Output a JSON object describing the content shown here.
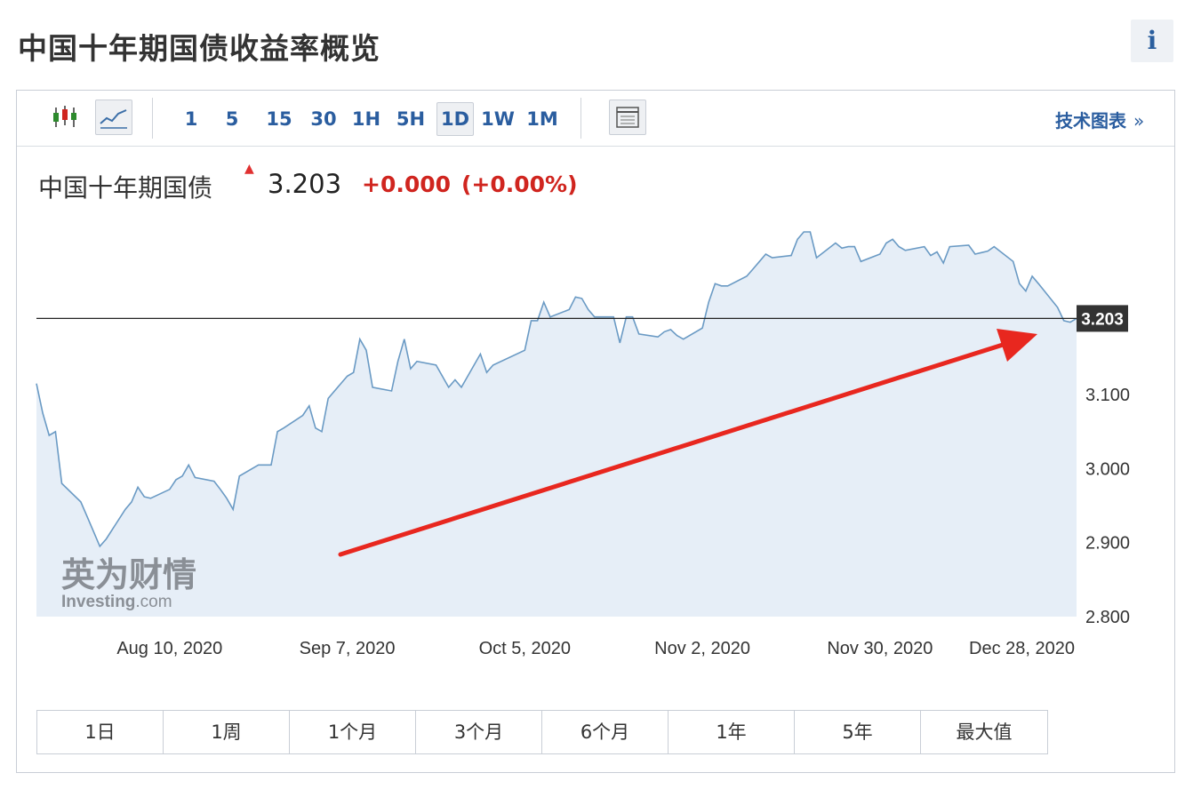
{
  "page": {
    "title": "中国十年期国债收益率概览",
    "info_label": "i"
  },
  "toolbar": {
    "ranges": [
      "1",
      "5",
      "15",
      "30",
      "1H",
      "5H",
      "1D",
      "1W",
      "1M"
    ],
    "active_range": "1D",
    "tech_link": "技术图表",
    "tech_chevron": "»"
  },
  "quote": {
    "name": "中国十年期国债",
    "price": "3.203",
    "change": "+0.000",
    "change_pct": "(+0.00%)"
  },
  "watermark": {
    "brand": "英为财情",
    "site": "Investing",
    "domain": ".com"
  },
  "periods": [
    "1日",
    "1周",
    "1个月",
    "3个月",
    "6个月",
    "1年",
    "5年",
    "最大值"
  ],
  "colors": {
    "line": "#6a9ac4",
    "area": "#e6eef7",
    "accent_red": "#d0251f",
    "link_blue": "#2a5d9f"
  },
  "chart_data": {
    "type": "area",
    "x": [
      "2020-07-20",
      "2020-07-21",
      "2020-07-22",
      "2020-07-23",
      "2020-07-24",
      "2020-07-27",
      "2020-07-28",
      "2020-07-29",
      "2020-07-30",
      "2020-07-31",
      "2020-08-03",
      "2020-08-04",
      "2020-08-05",
      "2020-08-06",
      "2020-08-07",
      "2020-08-10",
      "2020-08-11",
      "2020-08-12",
      "2020-08-13",
      "2020-08-14",
      "2020-08-17",
      "2020-08-18",
      "2020-08-19",
      "2020-08-20",
      "2020-08-21",
      "2020-08-24",
      "2020-08-25",
      "2020-08-26",
      "2020-08-27",
      "2020-08-28",
      "2020-08-31",
      "2020-09-01",
      "2020-09-02",
      "2020-09-03",
      "2020-09-04",
      "2020-09-07",
      "2020-09-08",
      "2020-09-09",
      "2020-09-10",
      "2020-09-11",
      "2020-09-14",
      "2020-09-15",
      "2020-09-16",
      "2020-09-17",
      "2020-09-18",
      "2020-09-21",
      "2020-09-22",
      "2020-09-23",
      "2020-09-24",
      "2020-09-25",
      "2020-09-28",
      "2020-09-29",
      "2020-09-30",
      "2020-10-05",
      "2020-10-06",
      "2020-10-07",
      "2020-10-08",
      "2020-10-09",
      "2020-10-12",
      "2020-10-13",
      "2020-10-14",
      "2020-10-15",
      "2020-10-16",
      "2020-10-19",
      "2020-10-20",
      "2020-10-21",
      "2020-10-22",
      "2020-10-23",
      "2020-10-26",
      "2020-10-27",
      "2020-10-28",
      "2020-10-29",
      "2020-10-30",
      "2020-11-02",
      "2020-11-03",
      "2020-11-04",
      "2020-11-05",
      "2020-11-06",
      "2020-11-09",
      "2020-11-10",
      "2020-11-11",
      "2020-11-12",
      "2020-11-13",
      "2020-11-16",
      "2020-11-17",
      "2020-11-18",
      "2020-11-19",
      "2020-11-20",
      "2020-11-23",
      "2020-11-24",
      "2020-11-25",
      "2020-11-26",
      "2020-11-27",
      "2020-11-30",
      "2020-12-01",
      "2020-12-02",
      "2020-12-03",
      "2020-12-04",
      "2020-12-07",
      "2020-12-08",
      "2020-12-09",
      "2020-12-10",
      "2020-12-11",
      "2020-12-14",
      "2020-12-15",
      "2020-12-16",
      "2020-12-17",
      "2020-12-18",
      "2020-12-21",
      "2020-12-22",
      "2020-12-23",
      "2020-12-24",
      "2020-12-25",
      "2020-12-28",
      "2020-12-29",
      "2020-12-30",
      "2020-12-31"
    ],
    "series": [
      {
        "values": [
          3.115,
          3.075,
          3.045,
          3.05,
          2.98,
          2.955,
          2.935,
          2.915,
          2.895,
          2.905,
          2.945,
          2.955,
          2.975,
          2.962,
          2.96,
          2.972,
          2.985,
          2.99,
          3.005,
          2.988,
          2.983,
          2.972,
          2.96,
          2.945,
          2.99,
          3.005,
          3.005,
          3.005,
          3.05,
          3.055,
          3.072,
          3.085,
          3.055,
          3.05,
          3.095,
          3.125,
          3.13,
          3.175,
          3.16,
          3.11,
          3.105,
          3.145,
          3.175,
          3.135,
          3.145,
          3.14,
          3.125,
          3.11,
          3.12,
          3.11,
          3.155,
          3.13,
          3.14,
          3.16,
          3.2,
          3.2,
          3.225,
          3.205,
          3.215,
          3.232,
          3.23,
          3.215,
          3.205,
          3.205,
          3.17,
          3.205,
          3.205,
          3.182,
          3.178,
          3.185,
          3.188,
          3.18,
          3.175,
          3.19,
          3.225,
          3.25,
          3.247,
          3.247,
          3.26,
          3.27,
          3.28,
          3.29,
          3.285,
          3.288,
          3.31,
          3.32,
          3.32,
          3.285,
          3.305,
          3.298,
          3.3,
          3.3,
          3.28,
          3.29,
          3.305,
          3.31,
          3.3,
          3.295,
          3.3,
          3.288,
          3.293,
          3.278,
          3.3,
          3.302,
          3.29,
          3.292,
          3.294,
          3.3,
          3.28,
          3.25,
          3.24,
          3.26,
          3.25,
          3.218,
          3.2,
          3.198,
          3.203
        ]
      }
    ],
    "current_value": 3.203,
    "xticks": [
      "Aug 10, 2020",
      "Sep 7, 2020",
      "Oct 5, 2020",
      "Nov 2, 2020",
      "Nov 30, 2020",
      "Dec 28, 2020"
    ],
    "yticks": [
      "2.800",
      "2.900",
      "3.000",
      "3.100"
    ],
    "ylim": [
      2.8,
      3.35
    ],
    "y_axis_side": "right",
    "grid": false
  }
}
